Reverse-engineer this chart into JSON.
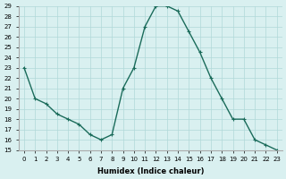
{
  "x": [
    0,
    1,
    2,
    3,
    4,
    5,
    6,
    7,
    8,
    9,
    10,
    11,
    12,
    13,
    14,
    15,
    16,
    17,
    18,
    19,
    20,
    21,
    22,
    23
  ],
  "y": [
    23,
    20,
    19.5,
    18.5,
    18,
    17.5,
    16.5,
    16,
    16.5,
    21,
    23,
    27,
    29,
    29,
    28.5,
    26.5,
    24.5,
    22,
    20,
    18,
    18,
    16,
    15.5,
    15
  ],
  "xlabel": "Humidex (Indice chaleur)",
  "line_color": "#1a6b5a",
  "bg_color": "#d9f0f0",
  "grid_color": "#b0d8d8",
  "text_color": "#000000",
  "ylim": [
    15,
    29
  ],
  "xlim": [
    -0.5,
    23.5
  ],
  "yticks": [
    15,
    16,
    17,
    18,
    19,
    20,
    21,
    22,
    23,
    24,
    25,
    26,
    27,
    28,
    29
  ],
  "xticks": [
    0,
    1,
    2,
    3,
    4,
    5,
    6,
    7,
    8,
    9,
    10,
    11,
    12,
    13,
    14,
    15,
    16,
    17,
    18,
    19,
    20,
    21,
    22,
    23
  ]
}
